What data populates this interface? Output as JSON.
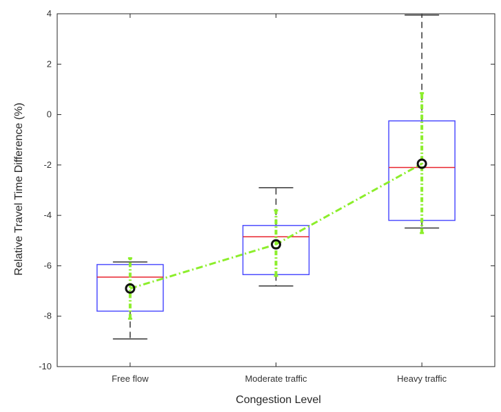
{
  "chart_data": {
    "type": "boxplot",
    "title": "",
    "xlabel": "Congestion Level",
    "ylabel": "Relative Travel Time Difference (%)",
    "ylim": [
      -10,
      4
    ],
    "yticks": [
      -10,
      -8,
      -6,
      -4,
      -2,
      0,
      2,
      4
    ],
    "categories": [
      "Free flow",
      "Moderate traffic",
      "Heavy traffic"
    ],
    "boxes": [
      {
        "whisker_low": -8.9,
        "q1": -7.8,
        "median": -6.45,
        "q3": -5.95,
        "whisker_high": -5.85
      },
      {
        "whisker_low": -6.8,
        "q1": -6.35,
        "median": -4.85,
        "q3": -4.4,
        "whisker_high": -2.9
      },
      {
        "whisker_low": -4.5,
        "q1": -4.2,
        "median": -2.1,
        "q3": -0.25,
        "whisker_high": 3.95
      }
    ],
    "mean_series": {
      "values": [
        -6.9,
        -5.15,
        -1.95
      ],
      "err_low": [
        -8.1,
        -6.4,
        -4.7
      ],
      "err_high": [
        -5.7,
        -3.8,
        0.85
      ]
    },
    "grid": false,
    "colors": {
      "box": "#4d4dff",
      "median": "#e8222b",
      "whisker": "#333333",
      "mean_line": "#8cee2b",
      "mean_marker": "#111111"
    }
  }
}
